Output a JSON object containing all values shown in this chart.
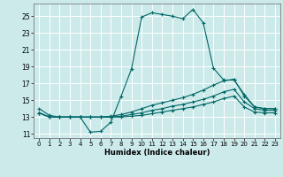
{
  "xlabel": "Humidex (Indice chaleur)",
  "background_color": "#cceaea",
  "grid_color": "#ffffff",
  "line_color": "#006666",
  "xlim": [
    -0.5,
    23.5
  ],
  "ylim": [
    10.5,
    26.5
  ],
  "xticks": [
    0,
    1,
    2,
    3,
    4,
    5,
    6,
    7,
    8,
    9,
    10,
    11,
    12,
    13,
    14,
    15,
    16,
    17,
    18,
    19,
    20,
    21,
    22,
    23
  ],
  "yticks": [
    11,
    13,
    15,
    17,
    19,
    21,
    23,
    25
  ],
  "lines": [
    {
      "x": [
        0,
        1,
        2,
        3,
        4,
        5,
        6,
        7,
        8,
        9,
        10,
        11,
        12,
        13,
        14,
        15,
        16,
        17,
        18,
        19,
        20,
        21,
        22,
        23
      ],
      "y": [
        14.0,
        13.2,
        13.0,
        13.0,
        13.0,
        11.2,
        11.3,
        12.4,
        15.5,
        18.7,
        24.9,
        25.4,
        25.2,
        25.0,
        24.7,
        25.8,
        24.2,
        18.8,
        17.4,
        17.4,
        15.7,
        14.2,
        14.0,
        14.0
      ]
    },
    {
      "x": [
        0,
        1,
        2,
        3,
        4,
        5,
        6,
        7,
        8,
        9,
        10,
        11,
        12,
        13,
        14,
        15,
        16,
        17,
        18,
        19,
        20,
        21,
        22,
        23
      ],
      "y": [
        13.5,
        13.0,
        13.0,
        13.0,
        13.0,
        13.0,
        13.0,
        13.1,
        13.3,
        13.6,
        14.0,
        14.4,
        14.7,
        15.0,
        15.3,
        15.7,
        16.2,
        16.8,
        17.3,
        17.5,
        15.5,
        14.2,
        14.0,
        14.0
      ]
    },
    {
      "x": [
        0,
        1,
        2,
        3,
        4,
        5,
        6,
        7,
        8,
        9,
        10,
        11,
        12,
        13,
        14,
        15,
        16,
        17,
        18,
        19,
        20,
        21,
        22,
        23
      ],
      "y": [
        13.5,
        13.0,
        13.0,
        13.0,
        13.0,
        13.0,
        13.0,
        13.0,
        13.1,
        13.3,
        13.5,
        13.8,
        14.0,
        14.3,
        14.5,
        14.8,
        15.1,
        15.5,
        16.0,
        16.3,
        14.8,
        14.0,
        13.8,
        13.8
      ]
    },
    {
      "x": [
        0,
        1,
        2,
        3,
        4,
        5,
        6,
        7,
        8,
        9,
        10,
        11,
        12,
        13,
        14,
        15,
        16,
        17,
        18,
        19,
        20,
        21,
        22,
        23
      ],
      "y": [
        13.5,
        13.0,
        13.0,
        13.0,
        13.0,
        13.0,
        13.0,
        13.0,
        13.0,
        13.1,
        13.2,
        13.4,
        13.6,
        13.8,
        14.0,
        14.2,
        14.5,
        14.8,
        15.2,
        15.5,
        14.2,
        13.6,
        13.5,
        13.5
      ]
    }
  ]
}
